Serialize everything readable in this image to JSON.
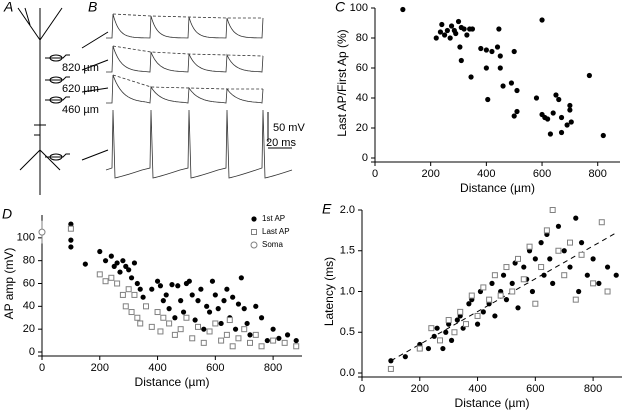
{
  "figure": {
    "panel_labels": [
      "A",
      "B"
    ],
    "distances": [
      "820 µm",
      "620 µm",
      "460 µm"
    ],
    "scale_bars": [
      "50 mV",
      "20 ms"
    ]
  },
  "chart_data": [
    {
      "type": "scatter",
      "panel_label": "C",
      "xlabel": "Distance (µm)",
      "ylabel": "Last AP/First Ap (%)",
      "xlim": [
        0,
        880
      ],
      "ylim": [
        0,
        100
      ],
      "xticks": [
        0,
        200,
        400,
        600,
        800
      ],
      "yticks": [
        0,
        20,
        40,
        60,
        80,
        100
      ],
      "series": [
        {
          "marker": "filled-circle",
          "color": "#000000",
          "x": [
            100,
            220,
            235,
            240,
            250,
            260,
            270,
            275,
            285,
            290,
            300,
            305,
            310,
            310,
            320,
            330,
            340,
            345,
            350,
            380,
            400,
            400,
            405,
            420,
            440,
            445,
            450,
            450,
            460,
            490,
            500,
            500,
            510,
            510,
            580,
            600,
            600,
            610,
            620,
            630,
            640,
            650,
            660,
            670,
            670,
            690,
            700,
            700,
            705,
            770,
            820
          ],
          "values": [
            99,
            80,
            84,
            89,
            82,
            85,
            80,
            88,
            85,
            83,
            91,
            74,
            65,
            87,
            86,
            82,
            86,
            54,
            86,
            73,
            60,
            72,
            39,
            71,
            74,
            86,
            60,
            68,
            48,
            50,
            71,
            28,
            31,
            45,
            40,
            92,
            29,
            27,
            26,
            16,
            30,
            42,
            39,
            27,
            17,
            22,
            35,
            32,
            24,
            55,
            15
          ]
        }
      ]
    },
    {
      "type": "scatter",
      "panel_label": "D",
      "xlabel": "Distance (µm)",
      "ylabel": "AP amp (mV)",
      "xlim": [
        0,
        900
      ],
      "ylim": [
        0,
        120
      ],
      "xticks": [
        0,
        200,
        400,
        600,
        800
      ],
      "yticks": [
        0,
        20,
        40,
        60,
        80,
        100
      ],
      "legend": "top-right",
      "series": [
        {
          "name": "1st AP",
          "marker": "filled-circle",
          "color": "#000000",
          "x": [
            100,
            100,
            100,
            150,
            200,
            220,
            240,
            250,
            260,
            270,
            280,
            290,
            300,
            310,
            320,
            330,
            340,
            350,
            360,
            380,
            400,
            410,
            420,
            430,
            440,
            450,
            460,
            470,
            480,
            490,
            500,
            510,
            520,
            530,
            540,
            550,
            560,
            570,
            580,
            590,
            600,
            610,
            620,
            630,
            640,
            650,
            660,
            670,
            680,
            690,
            700,
            710,
            720,
            740,
            760,
            780,
            800,
            820,
            850,
            880
          ],
          "values": [
            112,
            98,
            92,
            77,
            88,
            80,
            84,
            75,
            78,
            70,
            80,
            75,
            72,
            65,
            78,
            60,
            55,
            48,
            40,
            55,
            62,
            58,
            45,
            50,
            38,
            59,
            30,
            58,
            45,
            35,
            60,
            62,
            50,
            28,
            45,
            55,
            20,
            40,
            35,
            62,
            50,
            38,
            25,
            45,
            55,
            30,
            48,
            20,
            42,
            65,
            38,
            25,
            15,
            40,
            30,
            10,
            20,
            12,
            15,
            10
          ]
        },
        {
          "name": "Last AP",
          "marker": "open-square",
          "color": "#808080",
          "x": [
            100,
            200,
            220,
            240,
            260,
            280,
            290,
            300,
            310,
            320,
            330,
            340,
            360,
            380,
            400,
            410,
            420,
            440,
            460,
            480,
            500,
            520,
            540,
            560,
            580,
            600,
            620,
            640,
            650,
            660,
            680,
            700,
            720,
            740,
            760,
            800,
            840,
            880
          ],
          "values": [
            108,
            68,
            62,
            65,
            60,
            50,
            40,
            55,
            35,
            50,
            30,
            25,
            40,
            22,
            35,
            18,
            30,
            25,
            15,
            20,
            30,
            12,
            22,
            8,
            18,
            25,
            10,
            15,
            28,
            5,
            12,
            20,
            8,
            15,
            5,
            10,
            8,
            5
          ]
        },
        {
          "name": "Soma",
          "marker": "open-circle",
          "color": "#808080",
          "x": [
            0
          ],
          "values": [
            105
          ],
          "errors": [
            10
          ]
        }
      ]
    },
    {
      "type": "scatter",
      "panel_label": "E",
      "xlabel": "Distance (µm)",
      "ylabel": "Latency (ms)",
      "xlim": [
        0,
        900
      ],
      "ylim": [
        0,
        2
      ],
      "xticks": [
        0,
        200,
        400,
        600,
        800
      ],
      "yticks": [
        {
          "value": 0,
          "label": "0.0"
        },
        0.5,
        {
          "value": 1,
          "label": "1.0"
        },
        1.5,
        {
          "value": 2,
          "label": "2.0"
        }
      ],
      "fit": {
        "x": [
          100,
          880
        ],
        "y": [
          0.15,
          1.72
        ]
      },
      "series": [
        {
          "marker": "filled-circle",
          "color": "#000000",
          "x": [
            100,
            150,
            200,
            230,
            250,
            260,
            280,
            290,
            300,
            310,
            330,
            340,
            350,
            370,
            380,
            400,
            410,
            420,
            440,
            450,
            460,
            480,
            490,
            500,
            520,
            530,
            540,
            560,
            570,
            580,
            590,
            600,
            620,
            630,
            640,
            650,
            660,
            680,
            700,
            720,
            740,
            750,
            760,
            780,
            800,
            820,
            850,
            880
          ],
          "values": [
            0.15,
            0.2,
            0.35,
            0.3,
            0.45,
            0.55,
            0.3,
            0.5,
            0.6,
            0.4,
            0.65,
            0.7,
            0.55,
            0.85,
            0.9,
            0.6,
            1.0,
            0.75,
            0.85,
            1.1,
            0.7,
            1.0,
            1.2,
            0.9,
            1.1,
            1.35,
            0.8,
            1.3,
            1.15,
            1.5,
            1.0,
            1.4,
            1.6,
            1.2,
            1.7,
            1.4,
            1.1,
            1.8,
            1.5,
            1.3,
            1.9,
            1.0,
            1.6,
            1.2,
            1.4,
            1.1,
            1.3,
            1.2
          ]
        },
        {
          "marker": "open-square",
          "color": "#808080",
          "x": [
            100,
            200,
            240,
            270,
            300,
            320,
            340,
            360,
            380,
            400,
            420,
            440,
            460,
            480,
            500,
            520,
            540,
            560,
            580,
            600,
            620,
            640,
            660,
            680,
            700,
            720,
            740,
            760,
            800,
            830,
            850
          ],
          "values": [
            0.05,
            0.3,
            0.55,
            0.4,
            0.65,
            0.5,
            0.75,
            0.6,
            0.95,
            0.7,
            1.05,
            0.9,
            1.2,
            0.95,
            1.3,
            1.0,
            1.4,
            1.15,
            1.55,
            0.85,
            1.3,
            1.75,
            2.0,
            1.5,
            1.2,
            1.6,
            0.9,
            1.45,
            1.1,
            1.85,
            1.0
          ]
        }
      ]
    }
  ]
}
